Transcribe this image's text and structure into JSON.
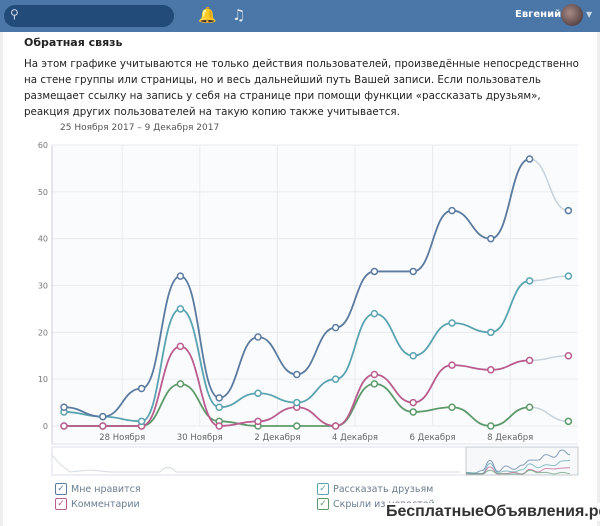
{
  "header": {
    "search_icon": "search-icon",
    "bell_icon": "bell-icon",
    "music_icon": "music-icon",
    "user_name": "Евгений"
  },
  "section": {
    "title": "Обратная связь",
    "description": "На этом графике учитываются не только действия пользователей, произведённые непосредственно на стене группы или страницы, но и весь дальнейший путь Вашей записи. Если пользователь размещает ссылку на запись у себя на странице при помощи функции «рассказать друзьям», реакция других пользователей на такую копию также учитывается.",
    "date_range": "25 Ноября 2017 – 9 Декабря 2017"
  },
  "chart_data": {
    "type": "line",
    "x": [
      "26 Ноября",
      "27 Ноября",
      "28 Ноября",
      "29 Ноября",
      "30 Ноября",
      "1 Декабря",
      "2 Декабря",
      "3 Декабря",
      "4 Декабря",
      "5 Декабря",
      "6 Декабря",
      "7 Декабря",
      "8 Декабря",
      "9 Декабря"
    ],
    "x_tick_labels": [
      "28 Ноября",
      "30 Ноября",
      "2 Декабря",
      "4 Декабря",
      "6 Декабря",
      "8 Декабря"
    ],
    "y_ticks": [
      0,
      10,
      20,
      30,
      40,
      50,
      60
    ],
    "ylim": [
      0,
      60
    ],
    "grid": true,
    "legend_placement": "bottom",
    "series": [
      {
        "name": "Мне нравится",
        "color": "#5b7aa0",
        "values": [
          4,
          2,
          8,
          32,
          6,
          19,
          11,
          21,
          33,
          33,
          46,
          40,
          57,
          46
        ]
      },
      {
        "name": "Рассказать друзьям",
        "color": "#5aa3b0",
        "values": [
          3,
          2,
          1,
          25,
          4,
          7,
          5,
          10,
          24,
          15,
          22,
          20,
          31,
          32
        ]
      },
      {
        "name": "Комментарии",
        "color": "#b95c8e",
        "values": [
          0,
          0,
          0,
          17,
          0,
          1,
          4,
          0,
          11,
          5,
          13,
          12,
          14,
          15
        ]
      },
      {
        "name": "Скрыли из новостей",
        "color": "#5c9a6a",
        "values": [
          0,
          0,
          0,
          9,
          1,
          0,
          0,
          0,
          9,
          3,
          4,
          0,
          4,
          1
        ]
      }
    ]
  },
  "legend": [
    "Мне нравится",
    "Комментарии",
    "Рассказать друзьям",
    "Скрыли из новостей"
  ],
  "watermark": "БесплатныеОбъявления.рф"
}
